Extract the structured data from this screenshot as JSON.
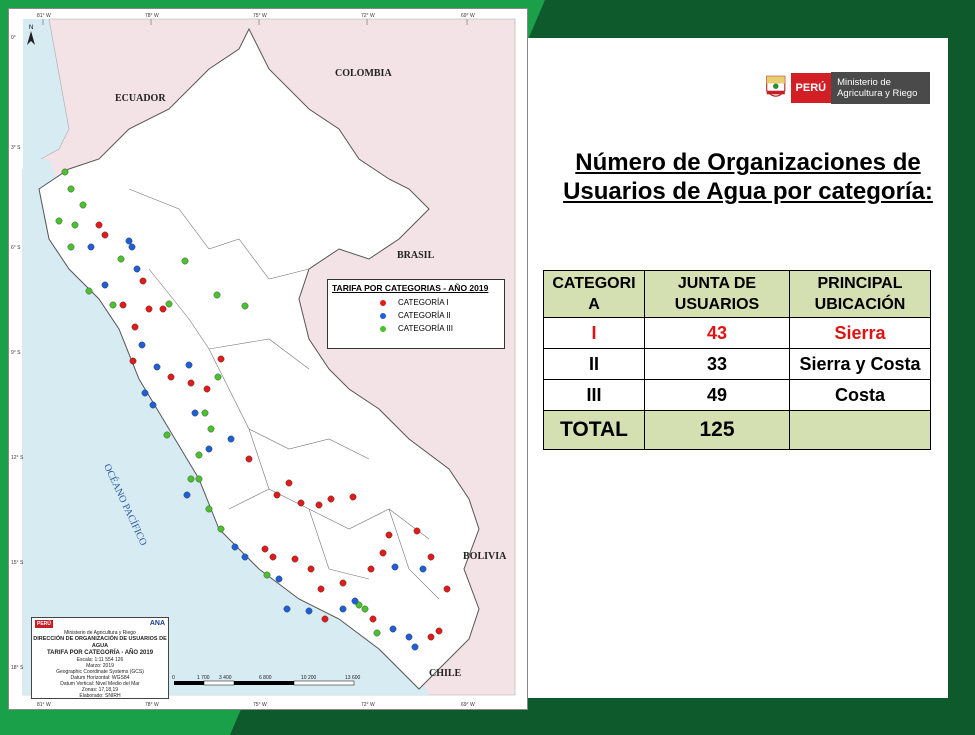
{
  "background": {
    "primary_green": "#1aa048",
    "dark_green": "#0e5a2c"
  },
  "map": {
    "countries": {
      "ecuador": "ECUADOR",
      "colombia": "COLOMBIA",
      "brasil": "BRASIL",
      "bolivia": "BOLIVIA",
      "chile": "CHILE"
    },
    "ocean": "OCÉANO PACÍFICO",
    "longitude_labels": [
      "81° W",
      "78° W",
      "75° W",
      "72° W",
      "69° W"
    ],
    "latitude_labels": [
      "0°",
      "3° S",
      "6° S",
      "9° S",
      "12° S",
      "15° S",
      "18° S"
    ],
    "scale_labels": [
      "0",
      "1 700",
      "3 400",
      "6 800",
      "10 200",
      "13 600"
    ],
    "legend": {
      "title": "TARIFA POR CATEGORIAS - AÑO 2019",
      "items": [
        {
          "label": "CATEGORÍA I",
          "color": "#e11a1a"
        },
        {
          "label": "CATEGORÍA II",
          "color": "#1f5fd6"
        },
        {
          "label": "CATEGORÍA III",
          "color": "#49c22e"
        }
      ]
    },
    "title_block": {
      "logo_peru": "PERÚ",
      "logo_ministry": "Ministerio de Agricultura y Riego",
      "logo_ana": "ANA",
      "directorate": "DIRECCIÓN DE ORGANIZACIÓN DE USUARIOS DE AGUA",
      "map_title": "TARIFA POR CATEGORÍA - AÑO 2019",
      "meta": [
        "Escala: 1:11 554 126",
        "Marzo: 2019",
        "Geographic Coordinate Systems (GCS)",
        "Datum Horizontal: WGS84",
        "Datum Vertical: Nivel Medio del Mar",
        "Zonas: 17,18,19",
        "Elaborado: SNIRH"
      ]
    }
  },
  "header_logo": {
    "country": "PERÚ",
    "ministry": "Ministerio de Agricultura y Riego"
  },
  "title": "Número de Organizaciones de Usuarios de Agua por categoría:",
  "table": {
    "headers": [
      "CATEGORI A",
      "JUNTA DE USUARIOS",
      "PRINCIPAL UBICACIÓN"
    ],
    "rows": [
      {
        "category": "I",
        "count": "43",
        "location": "Sierra"
      },
      {
        "category": "II",
        "count": "33",
        "location": "Sierra y Costa"
      },
      {
        "category": "III",
        "count": "49",
        "location": "Costa"
      }
    ],
    "total": {
      "label": "TOTAL",
      "count": "125",
      "location": ""
    }
  }
}
